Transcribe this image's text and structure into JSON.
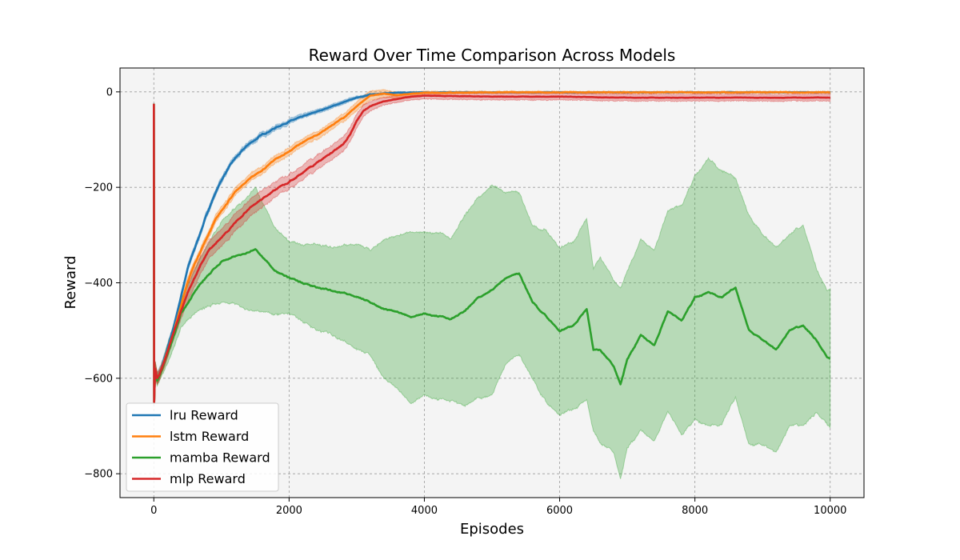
{
  "chart_data": {
    "type": "line",
    "title": "Reward Over Time Comparison Across Models",
    "xlabel": "Episodes",
    "ylabel": "Reward",
    "xlim": [
      -500,
      10500
    ],
    "ylim": [
      -850,
      50
    ],
    "xticks": [
      0,
      2000,
      4000,
      6000,
      8000,
      10000
    ],
    "xtick_labels": [
      "0",
      "2000",
      "4000",
      "6000",
      "8000",
      "10000"
    ],
    "yticks": [
      0,
      -200,
      -400,
      -600,
      -800
    ],
    "ytick_labels": [
      "0",
      "−200",
      "−400",
      "−600",
      "−800"
    ],
    "grid": true,
    "legend_position": "lower-left",
    "series": [
      {
        "name": "lru Reward",
        "color": "#1f77b4",
        "band_color": "#1f77b4",
        "x": [
          0,
          5,
          20,
          50,
          100,
          200,
          300,
          400,
          500,
          600,
          700,
          800,
          900,
          1000,
          1100,
          1200,
          1300,
          1400,
          1500,
          1600,
          1800,
          2000,
          2200,
          2400,
          2600,
          2800,
          3000,
          3200,
          3400,
          3600,
          4000,
          5000,
          6000,
          7000,
          8000,
          9000,
          10000
        ],
        "y": [
          -25,
          -650,
          -580,
          -600,
          -585,
          -540,
          -490,
          -430,
          -370,
          -330,
          -290,
          -250,
          -215,
          -185,
          -160,
          -140,
          -125,
          -110,
          -100,
          -90,
          -75,
          -62,
          -52,
          -42,
          -32,
          -22,
          -12,
          -6,
          -3,
          -2,
          -1,
          -1,
          -1,
          -1,
          -1,
          -1,
          -1
        ],
        "band": [
          0,
          0,
          15,
          12,
          10,
          8,
          7,
          7,
          7,
          6,
          6,
          6,
          6,
          6,
          5,
          5,
          5,
          5,
          5,
          5,
          5,
          5,
          4,
          4,
          4,
          4,
          3,
          2,
          2,
          1,
          1,
          1,
          1,
          1,
          1,
          1,
          1
        ]
      },
      {
        "name": "lstm Reward",
        "color": "#ff7f0e",
        "band_color": "#ff7f0e",
        "x": [
          0,
          5,
          20,
          50,
          100,
          200,
          300,
          400,
          500,
          600,
          700,
          800,
          900,
          1000,
          1100,
          1200,
          1400,
          1600,
          1800,
          2000,
          2200,
          2400,
          2600,
          2800,
          3000,
          3200,
          3400,
          3600,
          3800,
          4000,
          5000,
          6000,
          7000,
          8000,
          9000,
          10000
        ],
        "y": [
          -25,
          -650,
          -580,
          -600,
          -585,
          -545,
          -500,
          -450,
          -400,
          -360,
          -330,
          -300,
          -270,
          -250,
          -230,
          -210,
          -185,
          -165,
          -140,
          -125,
          -105,
          -90,
          -72,
          -55,
          -30,
          -8,
          -4,
          -7,
          -4,
          -2,
          -1,
          -1,
          -1,
          -1,
          -1,
          -1
        ],
        "band": [
          0,
          0,
          15,
          12,
          10,
          9,
          9,
          8,
          8,
          8,
          8,
          8,
          8,
          8,
          8,
          8,
          8,
          8,
          8,
          8,
          8,
          8,
          8,
          8,
          9,
          10,
          8,
          6,
          4,
          3,
          2,
          2,
          2,
          2,
          2,
          2
        ]
      },
      {
        "name": "mamba Reward",
        "color": "#2ca02c",
        "band_color": "#2ca02c",
        "x": [
          0,
          5,
          20,
          50,
          100,
          200,
          300,
          400,
          500,
          600,
          700,
          800,
          900,
          1000,
          1200,
          1400,
          1500,
          1600,
          1800,
          2000,
          2200,
          2400,
          2600,
          2800,
          3000,
          3200,
          3400,
          3600,
          3800,
          4000,
          4200,
          4400,
          4600,
          4800,
          5000,
          5200,
          5400,
          5600,
          5800,
          6000,
          6200,
          6400,
          6500,
          6600,
          6800,
          6900,
          7000,
          7200,
          7400,
          7600,
          7800,
          8000,
          8200,
          8400,
          8600,
          8800,
          9000,
          9200,
          9400,
          9600,
          9800,
          9950,
          10000
        ],
        "y": [
          -25,
          -650,
          -580,
          -605,
          -590,
          -550,
          -510,
          -465,
          -445,
          -420,
          -400,
          -385,
          -370,
          -355,
          -345,
          -335,
          -330,
          -345,
          -375,
          -390,
          -400,
          -410,
          -415,
          -420,
          -430,
          -440,
          -455,
          -460,
          -470,
          -465,
          -470,
          -475,
          -460,
          -430,
          -415,
          -390,
          -380,
          -440,
          -470,
          -500,
          -490,
          -455,
          -540,
          -540,
          -575,
          -615,
          -560,
          -510,
          -530,
          -460,
          -480,
          -430,
          -420,
          -430,
          -410,
          -500,
          -520,
          -540,
          -500,
          -490,
          -520,
          -555,
          -560
        ],
        "band": [
          0,
          0,
          15,
          12,
          10,
          20,
          25,
          30,
          35,
          45,
          55,
          65,
          75,
          85,
          100,
          120,
          130,
          115,
          90,
          75,
          80,
          90,
          90,
          100,
          110,
          110,
          145,
          160,
          180,
          170,
          175,
          170,
          200,
          210,
          220,
          180,
          170,
          160,
          180,
          175,
          175,
          190,
          170,
          195,
          180,
          200,
          185,
          200,
          200,
          210,
          240,
          255,
          280,
          265,
          230,
          240,
          220,
          215,
          200,
          210,
          150,
          140,
          145
        ]
      },
      {
        "name": "mlp Reward",
        "color": "#d62728",
        "band_color": "#d62728",
        "x": [
          0,
          5,
          20,
          50,
          100,
          200,
          300,
          400,
          500,
          600,
          700,
          800,
          900,
          1000,
          1100,
          1200,
          1300,
          1400,
          1500,
          1600,
          1800,
          2000,
          2200,
          2400,
          2600,
          2800,
          2900,
          3000,
          3100,
          3200,
          3400,
          3600,
          3800,
          4000,
          5000,
          6000,
          7000,
          8000,
          9000,
          10000
        ],
        "y": [
          -25,
          -650,
          -580,
          -600,
          -585,
          -545,
          -500,
          -460,
          -420,
          -390,
          -360,
          -335,
          -320,
          -305,
          -290,
          -275,
          -260,
          -245,
          -235,
          -225,
          -205,
          -190,
          -170,
          -150,
          -130,
          -110,
          -90,
          -60,
          -40,
          -30,
          -20,
          -15,
          -10,
          -8,
          -10,
          -10,
          -12,
          -12,
          -12,
          -12
        ],
        "band": [
          0,
          0,
          15,
          12,
          10,
          12,
          14,
          16,
          18,
          18,
          18,
          18,
          18,
          18,
          18,
          18,
          18,
          18,
          18,
          18,
          16,
          15,
          15,
          15,
          15,
          15,
          15,
          15,
          12,
          10,
          8,
          7,
          7,
          7,
          7,
          7,
          7,
          7,
          7,
          7
        ]
      }
    ]
  }
}
